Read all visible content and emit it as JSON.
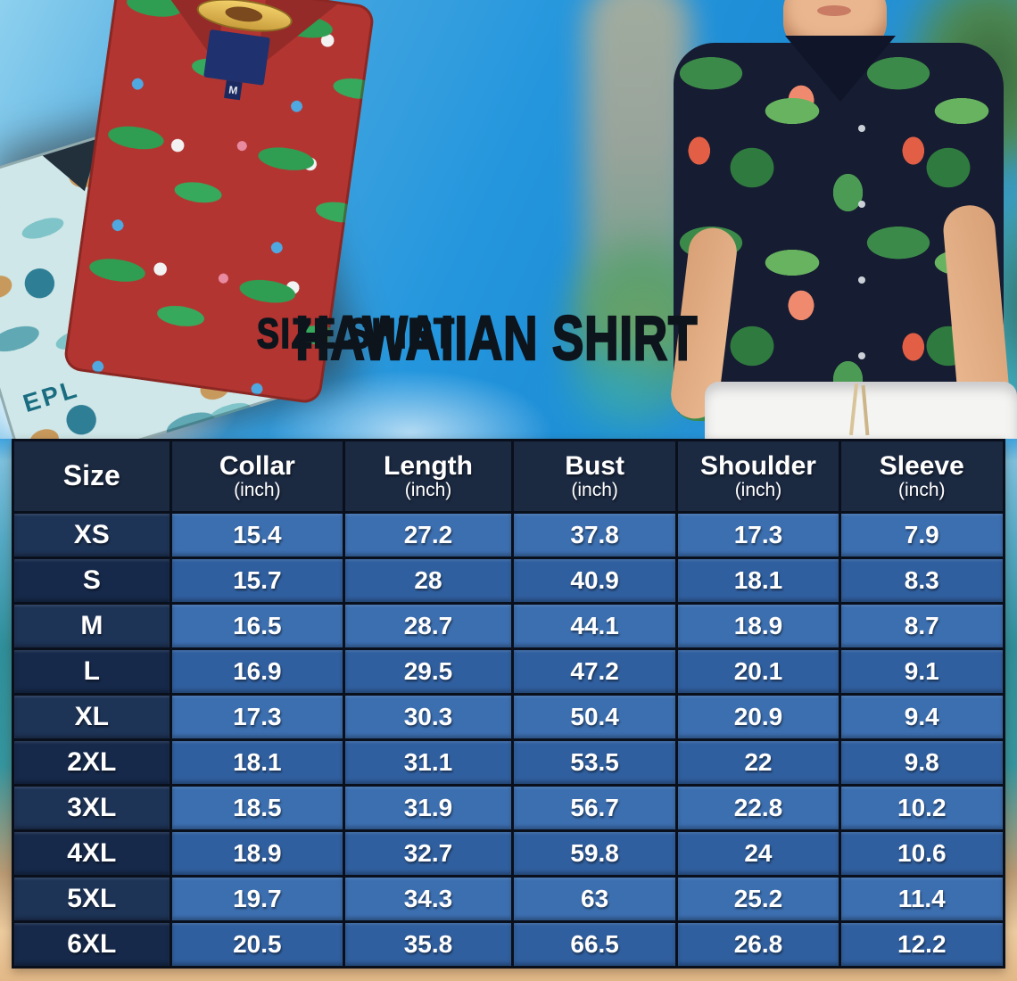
{
  "header": {
    "title": "HAWAIIAN SHIRT",
    "subtitle": "SIZE SHIRT"
  },
  "hero": {
    "left_photo": {
      "description": "folded red and teal hawaiian shirts",
      "red_shirt_collar_tag": "M",
      "teal_shirt_print_text": "EPL"
    },
    "right_photo": {
      "description": "man wearing navy flamingo hawaiian shirt with white pants"
    }
  },
  "chart_data": {
    "type": "table",
    "title": "Hawaiian Shirt Size Chart",
    "columns": [
      "Size",
      "Collar",
      "Length",
      "Bust",
      "Shoulder",
      "Sleeve"
    ],
    "column_units": [
      "",
      "(inch)",
      "(inch)",
      "(inch)",
      "(inch)",
      "(inch)"
    ],
    "rows": [
      [
        "XS",
        15.4,
        27.2,
        37.8,
        17.3,
        7.9
      ],
      [
        "S",
        15.7,
        28,
        40.9,
        18.1,
        8.3
      ],
      [
        "M",
        16.5,
        28.7,
        44.1,
        18.9,
        8.7
      ],
      [
        "L",
        16.9,
        29.5,
        47.2,
        20.1,
        9.1
      ],
      [
        "XL",
        17.3,
        30.3,
        50.4,
        20.9,
        9.4
      ],
      [
        "2XL",
        18.1,
        31.1,
        53.5,
        22,
        9.8
      ],
      [
        "3XL",
        18.5,
        31.9,
        56.7,
        22.8,
        10.2
      ],
      [
        "4XL",
        18.9,
        32.7,
        59.8,
        24,
        10.6
      ],
      [
        "5XL",
        19.7,
        34.3,
        63,
        25.2,
        11.4
      ],
      [
        "6XL",
        20.5,
        35.8,
        66.5,
        26.8,
        12.2
      ]
    ]
  },
  "colors": {
    "header_navy": "#1b2941",
    "row_blue_light": "#3c6fb0",
    "row_blue_dark": "#305f9f",
    "size_cell_light": "#1e3457",
    "size_cell_dark": "#16294a",
    "table_border": "#0a0f1c",
    "sky_blue": "#2496dd",
    "sand": "#eccb9e",
    "title_black": "#0d141c"
  }
}
